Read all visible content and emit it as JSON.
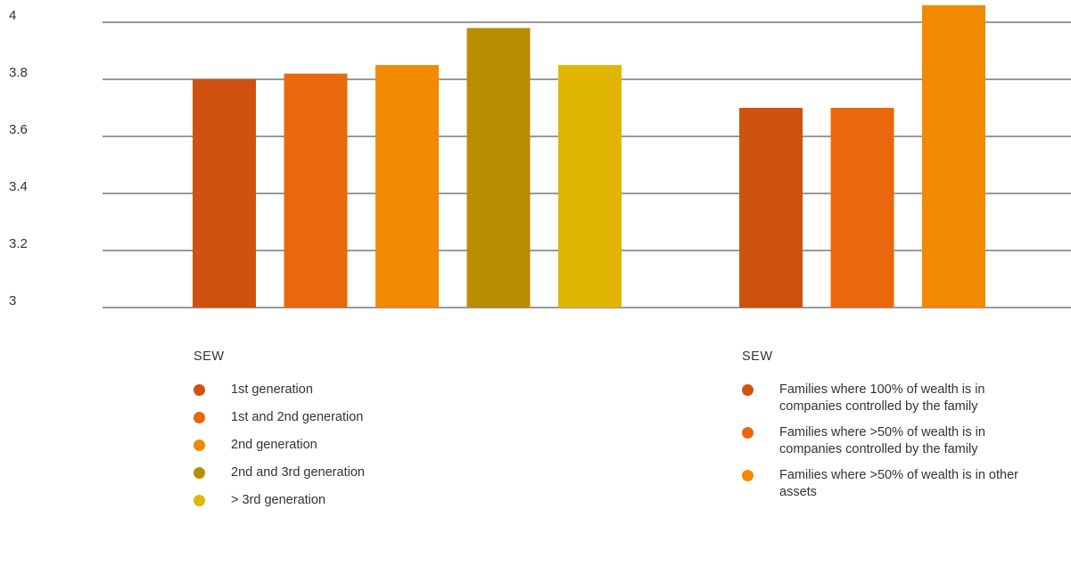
{
  "chart_data": {
    "type": "bar",
    "ylim": [
      3,
      4.05
    ],
    "yticks": [
      "3",
      "3.2",
      "3.4",
      "3.6",
      "3.8",
      "4"
    ],
    "grid": true,
    "groups": [
      {
        "label": "SEW",
        "series": [
          {
            "name": "1st generation",
            "value": 3.8,
            "color": "#cf5210"
          },
          {
            "name": "1st and 2nd generation",
            "value": 3.82,
            "color": "#ea680b"
          },
          {
            "name": "2nd generation",
            "value": 3.85,
            "color": "#f18a00"
          },
          {
            "name": "2nd and 3rd generation",
            "value": 3.98,
            "color": "#b88d00"
          },
          {
            "name": "> 3rd generation",
            "value": 3.85,
            "color": "#e0b600"
          }
        ]
      },
      {
        "label": "SEW",
        "series": [
          {
            "name": "Families where 100% of wealth is in companies controlled by the family",
            "value": 3.7,
            "color": "#cf5210"
          },
          {
            "name": "Families where >50% of wealth is in companies controlled by the family",
            "value": 3.7,
            "color": "#ea680b"
          },
          {
            "name": "Families where >50% of wealth is in other assets",
            "value": 4.06,
            "color": "#f18a00"
          }
        ]
      }
    ]
  }
}
